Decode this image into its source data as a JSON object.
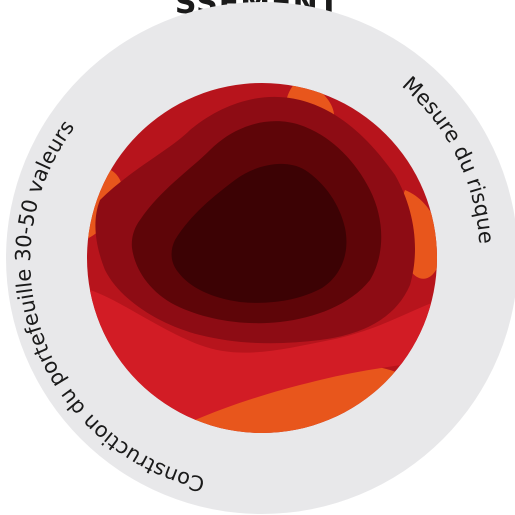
{
  "header": {
    "title": "SSEMENT"
  },
  "ring": {
    "background_color": "#e8e8ea",
    "labels": {
      "left": "Construction du portefeuille 30-50 valeurs",
      "right": "Mesure du risque"
    }
  },
  "center_image": {
    "icon": "layered-paper-cut-art",
    "colors": {
      "orange": "#e8561c",
      "red_light": "#d21c25",
      "red": "#b7141c",
      "red_dark": "#8d0c14",
      "maroon": "#5e0508",
      "deep": "#3c0204"
    }
  }
}
